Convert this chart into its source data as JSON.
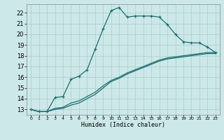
{
  "xlabel": "Humidex (Indice chaleur)",
  "ylabel": "",
  "bg_color": "#cce8e8",
  "grid_color": "#aacccc",
  "line_color": "#1a6e6e",
  "xlim": [
    -0.5,
    23.5
  ],
  "ylim": [
    12.5,
    22.8
  ],
  "yticks": [
    13,
    14,
    15,
    16,
    17,
    18,
    19,
    20,
    21,
    22
  ],
  "xticks": [
    0,
    1,
    2,
    3,
    4,
    5,
    6,
    7,
    8,
    9,
    10,
    11,
    12,
    13,
    14,
    15,
    16,
    17,
    18,
    19,
    20,
    21,
    22,
    23
  ],
  "line1_x": [
    0,
    1,
    2,
    3,
    4,
    5,
    6,
    7,
    8,
    9,
    10,
    11,
    12,
    13,
    14,
    15,
    16,
    17,
    18,
    19,
    20,
    21,
    22,
    23
  ],
  "line1_y": [
    13.0,
    12.8,
    12.8,
    14.1,
    14.2,
    15.8,
    16.1,
    16.7,
    18.6,
    20.5,
    22.2,
    22.5,
    21.6,
    21.7,
    21.7,
    21.7,
    21.6,
    20.9,
    20.0,
    19.3,
    19.2,
    19.2,
    18.8,
    18.3
  ],
  "line2_x": [
    0,
    1,
    2,
    3,
    4,
    5,
    6,
    7,
    8,
    9,
    10,
    11,
    12,
    13,
    14,
    15,
    16,
    17,
    18,
    19,
    20,
    21,
    22,
    23
  ],
  "line2_y": [
    13.0,
    12.8,
    12.8,
    13.1,
    13.2,
    13.6,
    13.8,
    14.2,
    14.6,
    15.2,
    15.7,
    16.0,
    16.4,
    16.7,
    17.0,
    17.3,
    17.6,
    17.8,
    17.9,
    18.0,
    18.1,
    18.2,
    18.3,
    18.3
  ],
  "line3_x": [
    0,
    1,
    2,
    3,
    4,
    5,
    6,
    7,
    8,
    9,
    10,
    11,
    12,
    13,
    14,
    15,
    16,
    17,
    18,
    19,
    20,
    21,
    22,
    23
  ],
  "line3_y": [
    13.0,
    12.8,
    12.8,
    13.0,
    13.1,
    13.4,
    13.6,
    14.0,
    14.4,
    15.0,
    15.6,
    15.9,
    16.3,
    16.6,
    16.9,
    17.2,
    17.5,
    17.7,
    17.8,
    17.9,
    18.0,
    18.1,
    18.2,
    18.2
  ],
  "xlabel_fontsize": 6,
  "ytick_fontsize": 6,
  "xtick_fontsize": 4.5
}
